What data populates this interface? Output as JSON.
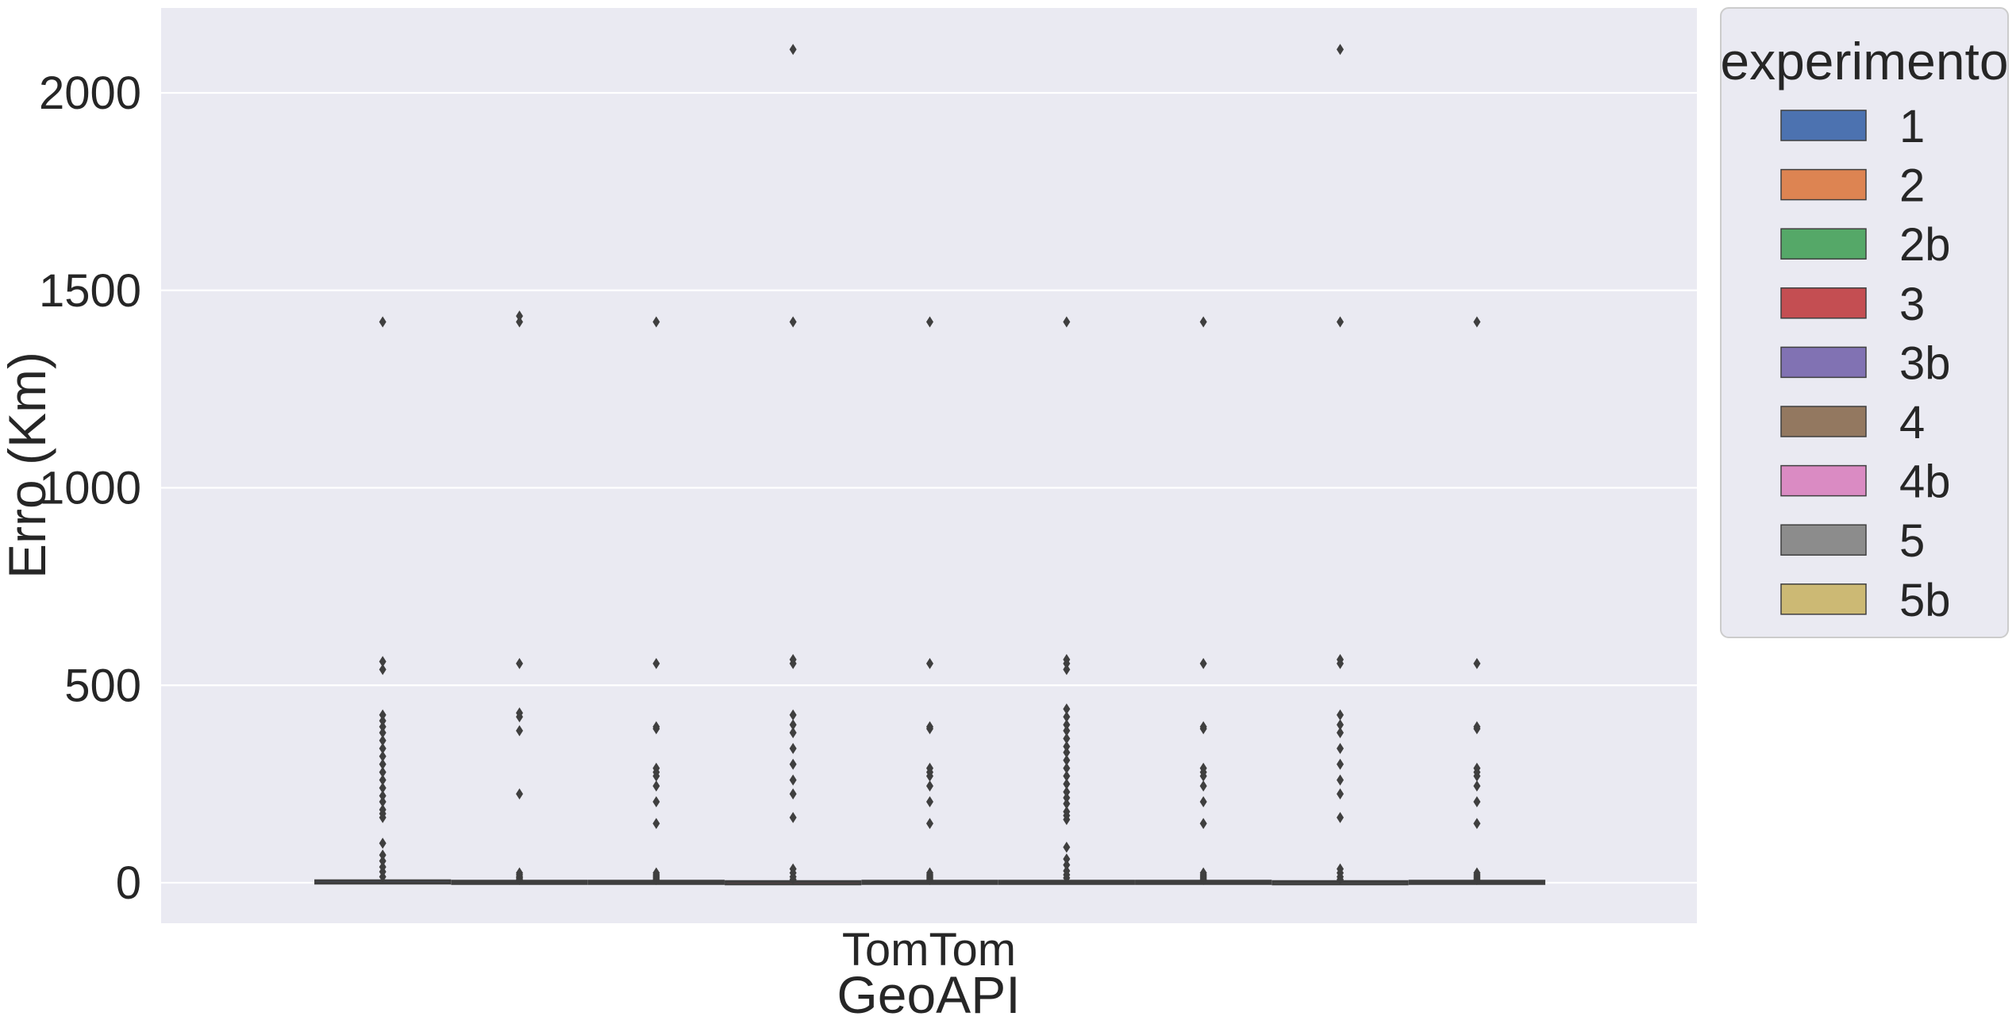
{
  "chart_data": {
    "type": "box",
    "xlabel": "GeoAPI",
    "ylabel": "Erro (Km)",
    "categories": [
      "TomTom"
    ],
    "ylim": [
      -100,
      2220
    ],
    "yticks": [
      0,
      500,
      1000,
      1500,
      2000
    ],
    "grid": true,
    "legend": {
      "title": "experimento",
      "placement": "outside-top-right"
    },
    "series": [
      {
        "name": "1",
        "color": "#4c72b0",
        "q1": 0,
        "median": 1,
        "q3": 4,
        "whisker_low": 0,
        "whisker_high": 10,
        "outliers": [
          15,
          28,
          40,
          55,
          70,
          100,
          165,
          175,
          185,
          205,
          220,
          240,
          260,
          280,
          300,
          320,
          340,
          360,
          380,
          395,
          410,
          425,
          540,
          560,
          1420
        ]
      },
      {
        "name": "2",
        "color": "#dd8452",
        "q1": 0,
        "median": 1,
        "q3": 3,
        "whisker_low": 0,
        "whisker_high": 6,
        "outliers": [
          8,
          12,
          15,
          20,
          25,
          225,
          385,
          420,
          430,
          555,
          1420,
          1435
        ]
      },
      {
        "name": "2b",
        "color": "#55a868",
        "q1": 0,
        "median": 1,
        "q3": 3,
        "whisker_low": 0,
        "whisker_high": 6,
        "outliers": [
          8,
          12,
          16,
          20,
          25,
          150,
          205,
          245,
          270,
          280,
          290,
          390,
          395,
          555,
          1420
        ]
      },
      {
        "name": "3",
        "color": "#c44e52",
        "q1": 0,
        "median": 1,
        "q3": 2,
        "whisker_low": 0,
        "whisker_high": 4,
        "outliers": [
          8,
          15,
          25,
          35,
          165,
          225,
          260,
          300,
          340,
          380,
          400,
          425,
          555,
          565,
          1420,
          2110
        ]
      },
      {
        "name": "3b",
        "color": "#8172b3",
        "q1": 0,
        "median": 1,
        "q3": 3,
        "whisker_low": 0,
        "whisker_high": 6,
        "outliers": [
          8,
          12,
          16,
          20,
          25,
          150,
          205,
          245,
          270,
          280,
          290,
          390,
          395,
          555,
          1420
        ]
      },
      {
        "name": "4",
        "color": "#937860",
        "q1": 0,
        "median": 1,
        "q3": 3,
        "whisker_low": 0,
        "whisker_high": 8,
        "outliers": [
          12,
          20,
          30,
          45,
          60,
          90,
          160,
          170,
          180,
          200,
          215,
          230,
          250,
          270,
          290,
          310,
          330,
          345,
          365,
          385,
          400,
          420,
          440,
          540,
          555,
          565,
          1420
        ]
      },
      {
        "name": "4b",
        "color": "#da8bc3",
        "q1": 0,
        "median": 1,
        "q3": 3,
        "whisker_low": 0,
        "whisker_high": 6,
        "outliers": [
          8,
          12,
          16,
          20,
          25,
          150,
          205,
          245,
          270,
          280,
          290,
          390,
          395,
          555,
          1420
        ]
      },
      {
        "name": "5",
        "color": "#8c8c8c",
        "q1": 0,
        "median": 1,
        "q3": 2,
        "whisker_low": 0,
        "whisker_high": 4,
        "outliers": [
          8,
          15,
          25,
          35,
          165,
          225,
          260,
          300,
          340,
          380,
          400,
          425,
          555,
          565,
          1420,
          2110
        ]
      },
      {
        "name": "5b",
        "color": "#ccb974",
        "q1": 0,
        "median": 1,
        "q3": 3,
        "whisker_low": 0,
        "whisker_high": 6,
        "outliers": [
          8,
          12,
          16,
          20,
          25,
          150,
          205,
          245,
          270,
          280,
          290,
          390,
          395,
          555,
          1420
        ]
      }
    ]
  }
}
